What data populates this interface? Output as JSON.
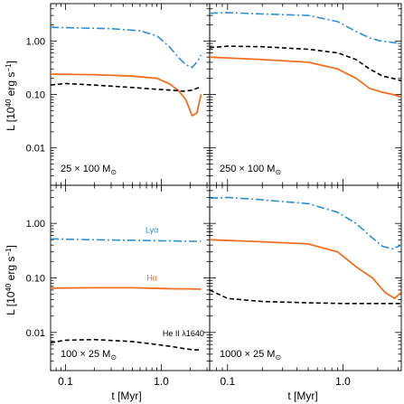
{
  "chart_data": {
    "type": "line",
    "xscale": "log",
    "yscale": "log",
    "xlim": [
      0.07,
      3.2
    ],
    "ylim": [
      0.002,
      5
    ],
    "ylabel_parts": [
      "L [10",
      "40",
      " erg s",
      "−1",
      "]"
    ],
    "xlabel": "t [Myr]",
    "x_ticks": [
      "0.1",
      "1.0"
    ],
    "y_ticks": [
      "1.00",
      "0.10",
      "0.01"
    ],
    "styles": {
      "Lya": {
        "color": "#2b8fd6",
        "dash": "9,3,2,3",
        "width": 1.6
      },
      "Halpha": {
        "color": "#f07020",
        "dash": "",
        "width": 1.8
      },
      "HeII": {
        "color": "#000000",
        "dash": "5,3",
        "width": 1.6
      }
    },
    "panels": [
      {
        "label_pre": "25 × 100 M",
        "sub": "⊙",
        "x_tick_labels": false,
        "series": [
          {
            "key": "Lya",
            "points": [
              [
                0.07,
                1.8
              ],
              [
                0.15,
                1.75
              ],
              [
                0.3,
                1.7
              ],
              [
                0.6,
                1.55
              ],
              [
                0.9,
                1.25
              ],
              [
                1.2,
                0.8
              ],
              [
                1.5,
                0.5
              ],
              [
                1.8,
                0.36
              ],
              [
                2.1,
                0.32
              ],
              [
                2.4,
                0.42
              ],
              [
                2.6,
                0.55
              ]
            ]
          },
          {
            "key": "Halpha",
            "points": [
              [
                0.07,
                0.24
              ],
              [
                0.2,
                0.235
              ],
              [
                0.5,
                0.22
              ],
              [
                0.9,
                0.2
              ],
              [
                1.2,
                0.16
              ],
              [
                1.5,
                0.12
              ],
              [
                1.8,
                0.08
              ],
              [
                2.1,
                0.04
              ],
              [
                2.35,
                0.045
              ],
              [
                2.6,
                0.1
              ]
            ]
          },
          {
            "key": "HeII",
            "points": [
              [
                0.07,
                0.15
              ],
              [
                0.1,
                0.16
              ],
              [
                0.2,
                0.15
              ],
              [
                0.5,
                0.135
              ],
              [
                0.9,
                0.125
              ],
              [
                1.3,
                0.12
              ],
              [
                1.7,
                0.115
              ],
              [
                2.1,
                0.12
              ],
              [
                2.6,
                0.14
              ]
            ]
          }
        ]
      },
      {
        "label_pre": "250 × 100 M",
        "sub": "⊙",
        "x_tick_labels": false,
        "series": [
          {
            "key": "Lya",
            "points": [
              [
                0.07,
                3.3
              ],
              [
                0.1,
                3.4
              ],
              [
                0.2,
                3.2
              ],
              [
                0.5,
                3.0
              ],
              [
                0.9,
                2.3
              ],
              [
                1.3,
                1.5
              ],
              [
                1.7,
                1.15
              ],
              [
                2.1,
                1.0
              ],
              [
                2.6,
                0.95
              ],
              [
                3.2,
                0.9
              ]
            ]
          },
          {
            "key": "HeII",
            "points": [
              [
                0.07,
                0.75
              ],
              [
                0.1,
                0.8
              ],
              [
                0.2,
                0.78
              ],
              [
                0.5,
                0.7
              ],
              [
                0.9,
                0.6
              ],
              [
                1.3,
                0.45
              ],
              [
                1.7,
                0.3
              ],
              [
                2.2,
                0.22
              ],
              [
                2.7,
                0.2
              ],
              [
                3.2,
                0.18
              ]
            ]
          },
          {
            "key": "Halpha",
            "points": [
              [
                0.07,
                0.5
              ],
              [
                0.2,
                0.45
              ],
              [
                0.5,
                0.4
              ],
              [
                0.9,
                0.3
              ],
              [
                1.3,
                0.2
              ],
              [
                1.7,
                0.13
              ],
              [
                2.2,
                0.11
              ],
              [
                2.7,
                0.1
              ],
              [
                3.2,
                0.09
              ]
            ]
          }
        ]
      },
      {
        "label_pre": "100 × 25 M",
        "sub": "⊙",
        "x_tick_labels": true,
        "annotations": [
          {
            "key": "Lya",
            "text": "Lyα",
            "x": 0.8,
            "y": 0.68
          },
          {
            "key": "Halpha",
            "text": "Hα",
            "x": 0.8,
            "y": 0.09
          },
          {
            "key": "HeII",
            "text": "He II λ1640",
            "x": 1.7,
            "y": 0.0085
          }
        ],
        "series": [
          {
            "key": "Lya",
            "points": [
              [
                0.07,
                0.52
              ],
              [
                0.2,
                0.5
              ],
              [
                0.5,
                0.49
              ],
              [
                1.0,
                0.48
              ],
              [
                1.5,
                0.475
              ],
              [
                2.0,
                0.47
              ],
              [
                2.6,
                0.47
              ]
            ]
          },
          {
            "key": "Halpha",
            "points": [
              [
                0.07,
                0.065
              ],
              [
                0.2,
                0.066
              ],
              [
                0.5,
                0.066
              ],
              [
                1.0,
                0.064
              ],
              [
                1.5,
                0.063
              ],
              [
                2.0,
                0.063
              ],
              [
                2.6,
                0.062
              ]
            ]
          },
          {
            "key": "HeII",
            "points": [
              [
                0.07,
                0.0065
              ],
              [
                0.1,
                0.0072
              ],
              [
                0.2,
                0.0074
              ],
              [
                0.5,
                0.0068
              ],
              [
                0.9,
                0.006
              ],
              [
                1.3,
                0.0055
              ],
              [
                1.8,
                0.005
              ],
              [
                2.2,
                0.0048
              ],
              [
                2.6,
                0.0048
              ]
            ]
          }
        ]
      },
      {
        "label_pre": "1000 × 25 M",
        "sub": "⊙",
        "x_tick_labels": true,
        "series": [
          {
            "key": "Lya",
            "points": [
              [
                0.07,
                2.9
              ],
              [
                0.1,
                3.0
              ],
              [
                0.2,
                2.7
              ],
              [
                0.5,
                2.3
              ],
              [
                0.9,
                1.6
              ],
              [
                1.3,
                1.0
              ],
              [
                1.7,
                0.6
              ],
              [
                2.2,
                0.38
              ],
              [
                2.7,
                0.34
              ],
              [
                3.2,
                0.4
              ]
            ]
          },
          {
            "key": "Halpha",
            "points": [
              [
                0.07,
                0.5
              ],
              [
                0.2,
                0.46
              ],
              [
                0.5,
                0.42
              ],
              [
                0.9,
                0.3
              ],
              [
                1.3,
                0.16
              ],
              [
                1.8,
                0.1
              ],
              [
                2.3,
                0.055
              ],
              [
                2.8,
                0.042
              ],
              [
                3.2,
                0.055
              ]
            ]
          },
          {
            "key": "HeII",
            "points": [
              [
                0.07,
                0.06
              ],
              [
                0.1,
                0.042
              ],
              [
                0.2,
                0.037
              ],
              [
                0.5,
                0.035
              ],
              [
                1.0,
                0.034
              ],
              [
                2.0,
                0.034
              ],
              [
                3.2,
                0.034
              ]
            ]
          }
        ]
      }
    ]
  }
}
